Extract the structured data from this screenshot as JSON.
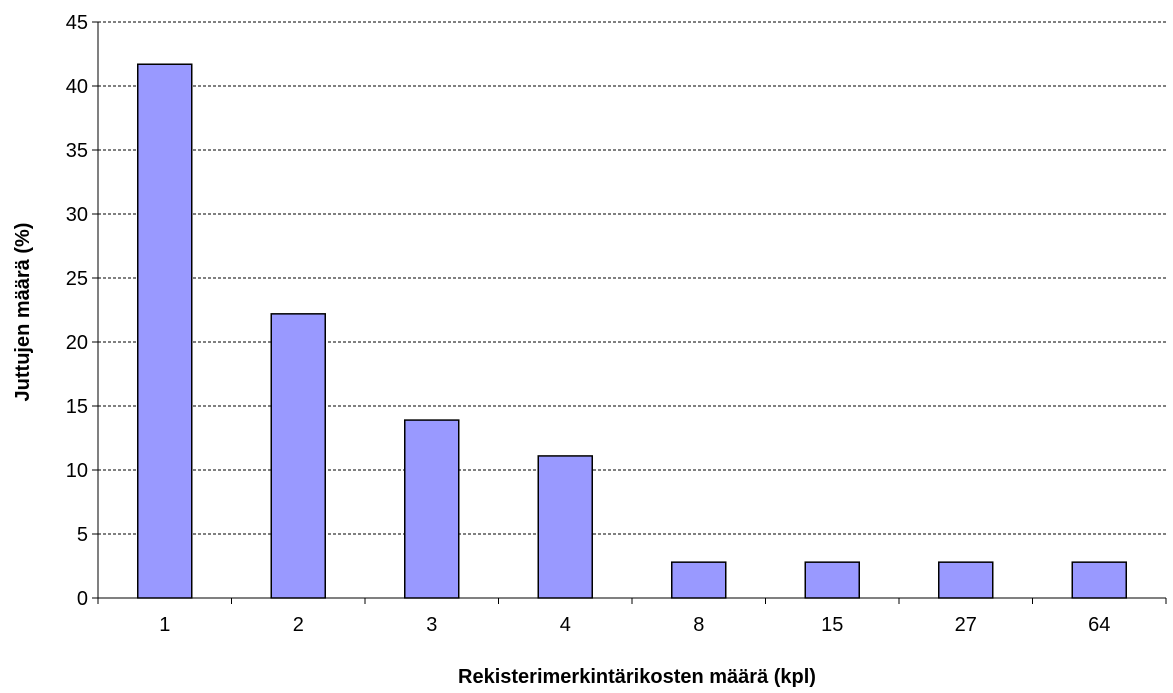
{
  "chart_data": {
    "type": "bar",
    "categories": [
      "1",
      "2",
      "3",
      "4",
      "8",
      "15",
      "27",
      "64"
    ],
    "values": [
      41.7,
      22.2,
      13.9,
      11.1,
      2.8,
      2.8,
      2.8,
      2.8
    ],
    "xlabel": "Rekisterimerkintärikosten määrä (kpl)",
    "ylabel": "Juttujen määrä (%)",
    "ylim": [
      0,
      45
    ],
    "yticks": [
      "0",
      "5",
      "10",
      "15",
      "20",
      "25",
      "30",
      "35",
      "40",
      "45"
    ],
    "grid": true,
    "legend": "none",
    "colors": {
      "bar_fill": "#9999ff",
      "bar_stroke": "#000000",
      "grid": "#000000",
      "axis": "#000000"
    }
  }
}
